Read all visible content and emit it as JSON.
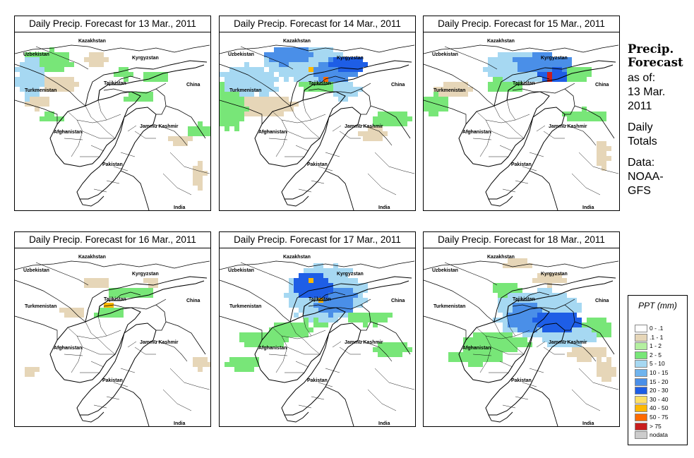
{
  "panels": [
    {
      "title": "Daily Precip. Forecast for  13 Mar., 2011"
    },
    {
      "title": "Daily Precip. Forecast for  14 Mar., 2011"
    },
    {
      "title": "Daily Precip. Forecast for  15 Mar., 2011"
    },
    {
      "title": "Daily Precip. Forecast for  16 Mar., 2011"
    },
    {
      "title": "Daily Precip. Forecast for  17 Mar., 2011"
    },
    {
      "title": "Daily Precip. Forecast for  18 Mar., 2011"
    }
  ],
  "map_labels": {
    "kazakhstan": "Kazakhstan",
    "uzbekistan": "Uzbekistan",
    "kyrgyzstan": "Kyrgyzstan",
    "tajikistan": "Tajikistan",
    "turkmenistan": "Turkmenistan",
    "china": "China",
    "afghanistan": "Afghanistan",
    "jammu_kashmir": "Jammu Kashmir",
    "pakistan": "Pakistan",
    "india": "India"
  },
  "side": {
    "title_line1": "Precip.",
    "title_line2": "Forecast",
    "asof_line1": "as of:",
    "asof_line2": "13 Mar.",
    "asof_line3": "2011",
    "totals_line1": "Daily",
    "totals_line2": "Totals",
    "data_line1": "Data:",
    "data_line2": "NOAA-",
    "data_line3": "GFS"
  },
  "legend": {
    "title": "PPT (mm)",
    "items": [
      {
        "label": "0 - .1",
        "color": "#ffffff"
      },
      {
        "label": ".1 - 1",
        "color": "#e6d6b8"
      },
      {
        "label": "1 - 2",
        "color": "#b4f0a0"
      },
      {
        "label": "2 - 5",
        "color": "#78e678"
      },
      {
        "label": "5 - 10",
        "color": "#a6d8f2"
      },
      {
        "label": "10 - 15",
        "color": "#6fb4ee"
      },
      {
        "label": "15 - 20",
        "color": "#4a8fe8"
      },
      {
        "label": "20 - 30",
        "color": "#1e5ee6"
      },
      {
        "label": "30 - 40",
        "color": "#ffe066"
      },
      {
        "label": "40 - 50",
        "color": "#ffb800"
      },
      {
        "label": "50 - 75",
        "color": "#ff6a00"
      },
      {
        "label": "> 75",
        "color": "#c81e1e"
      },
      {
        "label": "nodata",
        "color": "#cccccc"
      }
    ]
  }
}
